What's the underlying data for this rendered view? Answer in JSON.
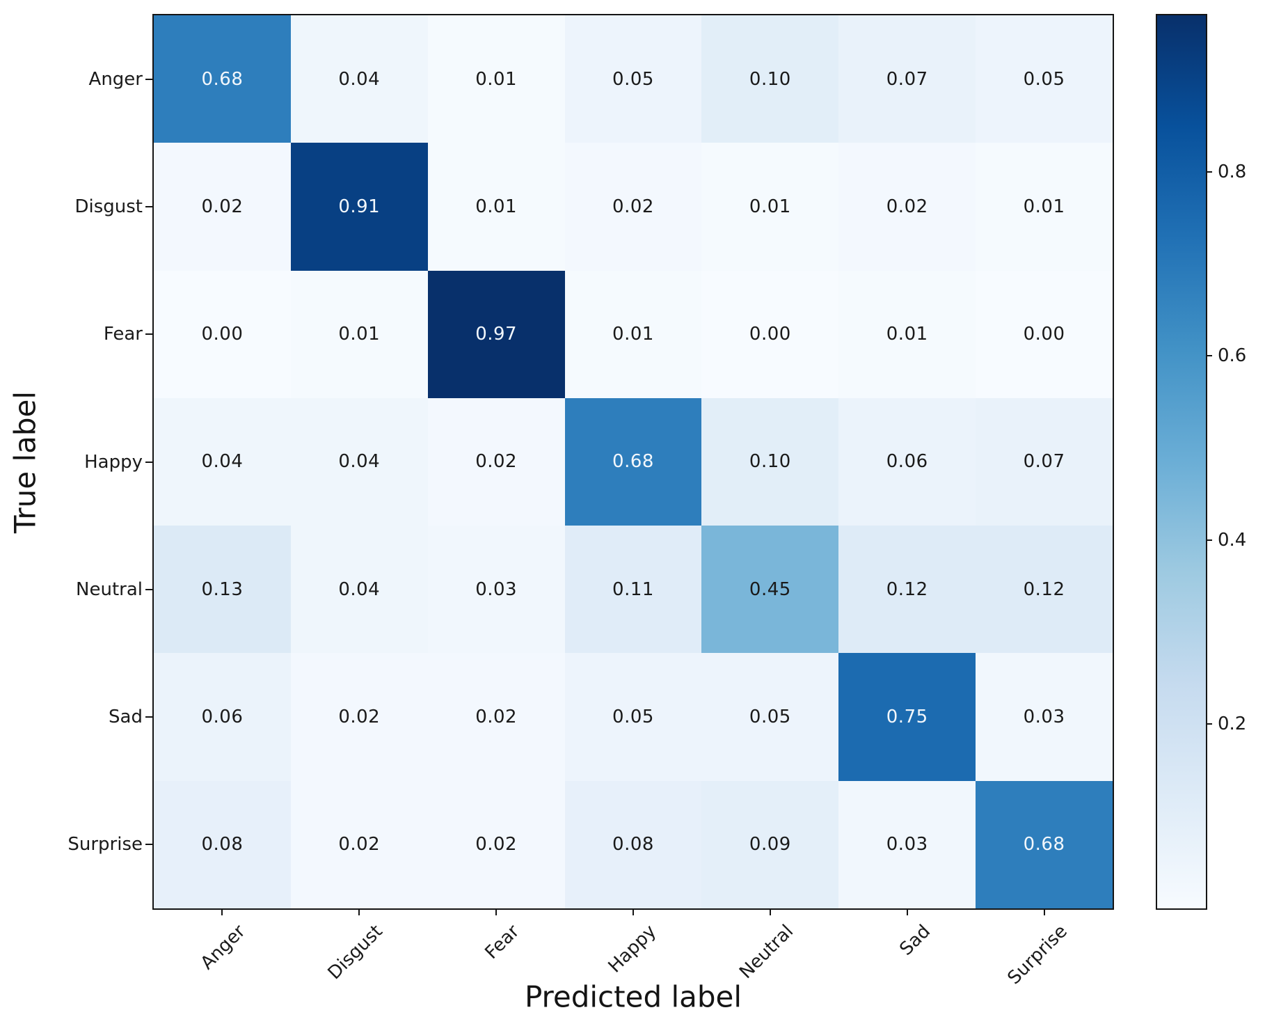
{
  "chart_data": {
    "type": "heatmap",
    "title": "",
    "xlabel": "Predicted label",
    "ylabel": "True label",
    "x_categories": [
      "Anger",
      "Disgust",
      "Fear",
      "Happy",
      "Neutral",
      "Sad",
      "Surprise"
    ],
    "y_categories": [
      "Anger",
      "Disgust",
      "Fear",
      "Happy",
      "Neutral",
      "Sad",
      "Surprise"
    ],
    "matrix": [
      [
        0.68,
        0.04,
        0.01,
        0.05,
        0.1,
        0.07,
        0.05
      ],
      [
        0.02,
        0.91,
        0.01,
        0.02,
        0.01,
        0.02,
        0.01
      ],
      [
        0.0,
        0.01,
        0.97,
        0.01,
        0.0,
        0.01,
        0.0
      ],
      [
        0.04,
        0.04,
        0.02,
        0.68,
        0.1,
        0.06,
        0.07
      ],
      [
        0.13,
        0.04,
        0.03,
        0.11,
        0.45,
        0.12,
        0.12
      ],
      [
        0.06,
        0.02,
        0.02,
        0.05,
        0.05,
        0.75,
        0.03
      ],
      [
        0.08,
        0.02,
        0.02,
        0.08,
        0.09,
        0.03,
        0.68
      ]
    ],
    "value_decimals": 2,
    "vmin": 0.0,
    "vmax": 0.97,
    "colormap": "Blues",
    "colormap_stops": [
      "#f7fbff",
      "#deebf7",
      "#c6dbef",
      "#9ecae1",
      "#6baed6",
      "#4292c6",
      "#2171b5",
      "#08519c",
      "#08306b"
    ],
    "cell_text_color_dark": "#1a1a1a",
    "cell_text_color_light": "#f2f7fc",
    "colorbar_ticks": [
      0.2,
      0.4,
      0.6,
      0.8
    ],
    "colorbar_position": "right",
    "grid": "off"
  }
}
